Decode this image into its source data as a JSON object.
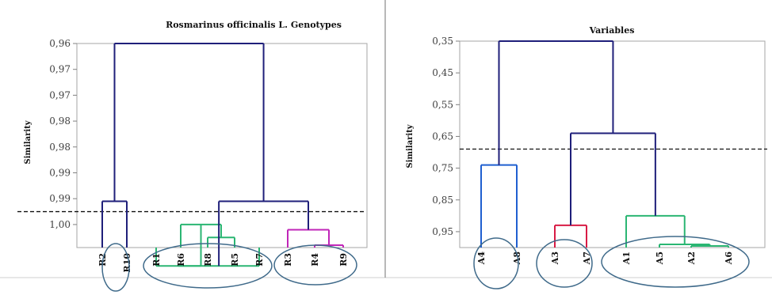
{
  "chart_data": [
    {
      "type": "dendrogram",
      "title": "Rosmarinus officinalis L. Genotypes",
      "ylabel": "Similarity",
      "ytick_labels": [
        "0,96",
        "0,97",
        "0,97",
        "0,98",
        "0,98",
        "0,99",
        "0,99",
        "1,00"
      ],
      "cutoff_level": 6.5,
      "leaves": [
        "R2",
        "R10",
        "R1",
        "R6",
        "R8",
        "R5",
        "R7",
        "R3",
        "R4",
        "R9"
      ],
      "merges": [
        {
          "a": "R8",
          "b": "R5",
          "height": 7.5,
          "color": "#2bb673"
        },
        {
          "a": "R6",
          "b": "R8",
          "height": 7.0,
          "color": "#2bb673"
        },
        {
          "a": "R1",
          "b": "R6",
          "height": 8.6,
          "color": "#2bb673"
        },
        {
          "a": "R5",
          "b": "R7",
          "height": 8.6,
          "color": "#2bb673"
        },
        {
          "a": "R4",
          "b": "R9",
          "height": 7.8,
          "color": "#c026b8"
        },
        {
          "a": "R3",
          "b": "R4",
          "height": 7.2,
          "color": "#c026b8"
        },
        {
          "a": "R6",
          "b": "R3",
          "height": 6.1,
          "color": "#1f1f7a"
        },
        {
          "a": "R2",
          "b": "R10",
          "height": 6.1,
          "color": "#1f1f7a"
        },
        {
          "a": "R10",
          "b": "R6",
          "height": 0.0,
          "color": "#1f1f7a"
        }
      ],
      "circled_groups": [
        [
          "R2",
          "R10"
        ],
        [
          "R1",
          "R6",
          "R8",
          "R5",
          "R7"
        ],
        [
          "R3",
          "R4",
          "R9"
        ]
      ]
    },
    {
      "type": "dendrogram",
      "title": "Variables",
      "ylabel": "Similarity",
      "ytick_labels": [
        "0,35",
        "0,45",
        "0,55",
        "0,65",
        "0,75",
        "0,85",
        "0,95"
      ],
      "ytick_values": [
        0.35,
        0.45,
        0.55,
        0.65,
        0.75,
        0.85,
        0.95
      ],
      "ylim": [
        0.35,
        1.0
      ],
      "cutoff_level": 0.69,
      "leaves": [
        "A4",
        "A8",
        "A3",
        "A7",
        "A1",
        "A5",
        "A2",
        "A6"
      ],
      "merges": [
        {
          "a": "A2",
          "b": "A6",
          "height": 0.995,
          "color": "#2bb673"
        },
        {
          "a": "A5",
          "b": "A2",
          "height": 0.99,
          "color": "#2bb673"
        },
        {
          "a": "A1",
          "b": "A5",
          "height": 0.9,
          "color": "#2bb673"
        },
        {
          "a": "A3",
          "b": "A7",
          "height": 0.93,
          "color": "#d81b45"
        },
        {
          "a": "A4",
          "b": "A8",
          "height": 0.74,
          "color": "#1f5fd0"
        },
        {
          "a": "A3",
          "b": "A1",
          "height": 0.64,
          "color": "#1f1f7a"
        },
        {
          "a": "A4",
          "b": "A3",
          "height": 0.35,
          "color": "#1f1f7a"
        }
      ],
      "circled_groups": [
        [
          "A4",
          "A8"
        ],
        [
          "A3",
          "A7"
        ],
        [
          "A1",
          "A5",
          "A2",
          "A6"
        ]
      ]
    }
  ]
}
